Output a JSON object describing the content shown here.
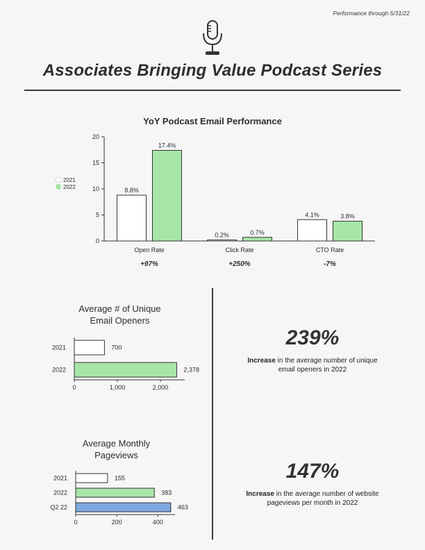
{
  "header": {
    "performance_note": "Performance through 5/31/22",
    "icon": "microphone-icon",
    "title": "Associates Bringing Value Podcast Series"
  },
  "colors": {
    "series_2021": "#ffffff",
    "series_2022": "#a8e6a8",
    "series_q222": "#7ea8e0",
    "bar_stroke": "#333333",
    "axis": "#333333"
  },
  "chart_data": [
    {
      "type": "bar",
      "title": "YoY Podcast Email Performance",
      "categories": [
        "Open Rate",
        "Click Rate",
        "CTO Rate"
      ],
      "series": [
        {
          "name": "2021",
          "values": [
            8.8,
            0.2,
            4.1
          ],
          "labels": [
            "8.8%",
            "0.2%",
            "4.1%"
          ]
        },
        {
          "name": "2022",
          "values": [
            17.4,
            0.7,
            3.8
          ],
          "labels": [
            "17.4%",
            "0.7%",
            "3.8%"
          ]
        }
      ],
      "changes": [
        "+97%",
        "+250%",
        "-7%"
      ],
      "ylim": [
        0,
        20
      ],
      "yticks": [
        "0",
        "5",
        "10",
        "15",
        "20"
      ],
      "legend_position": "left",
      "grid": false
    },
    {
      "type": "bar",
      "orientation": "horizontal",
      "title_line1": "Average # of Unique",
      "title_line2": "Email Openers",
      "categories": [
        "2021",
        "2022"
      ],
      "values": [
        700,
        2378
      ],
      "labels": [
        "700",
        "2,378"
      ],
      "xlim": [
        0,
        2500
      ],
      "xticks": [
        "0",
        "1,000",
        "2,000"
      ],
      "xtick_values": [
        0,
        1000,
        2000
      ]
    },
    {
      "type": "bar",
      "orientation": "horizontal",
      "title_line1": "Average Monthly",
      "title_line2": "Pageviews",
      "categories": [
        "2021",
        "2022",
        "Q2 22"
      ],
      "values": [
        155,
        383,
        463
      ],
      "labels": [
        "155",
        "383",
        "463"
      ],
      "xlim": [
        0,
        470
      ],
      "xticks": [
        "0",
        "200",
        "400"
      ],
      "xtick_values": [
        0,
        200,
        400
      ]
    }
  ],
  "stats": [
    {
      "value": "239%",
      "bold_word": "Increase",
      "rest_line1": " in the average number of unique",
      "line2": "email openers in 2022"
    },
    {
      "value": "147%",
      "bold_word": "Increase",
      "rest_line1": " in the average number of website",
      "line2": "pageviews per month in 2022"
    }
  ]
}
